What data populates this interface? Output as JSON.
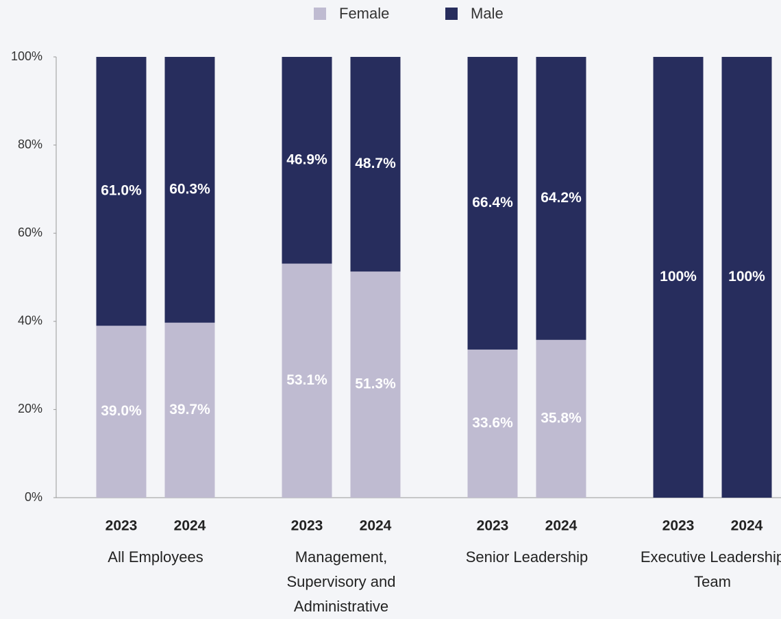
{
  "chart_data": {
    "type": "bar",
    "stacked": true,
    "categories": [
      "2023",
      "2024",
      "2023",
      "2024",
      "2023",
      "2024",
      "2023",
      "2024"
    ],
    "groups": [
      "All Employees",
      "Management, Supervisory and Administrative",
      "Senior Leadership",
      "Executive Leadership Team"
    ],
    "series": [
      {
        "name": "Female",
        "color": "#bfbbd1",
        "values": [
          39.0,
          39.7,
          53.1,
          51.3,
          33.6,
          35.8,
          0,
          0
        ],
        "value_labels": [
          "39.0%",
          "39.7%",
          "53.1%",
          "51.3%",
          "33.6%",
          "35.8%",
          null,
          null
        ]
      },
      {
        "name": "Male",
        "color": "#272d5d",
        "values": [
          61.0,
          60.3,
          46.9,
          48.7,
          66.4,
          64.2,
          100,
          100
        ],
        "value_labels": [
          "61.0%",
          "60.3%",
          "46.9%",
          "48.7%",
          "66.4%",
          "64.2%",
          "100%",
          "100%"
        ]
      }
    ],
    "ylim": [
      0,
      100
    ],
    "yticks": [
      {
        "value": 0,
        "label": "0%"
      },
      {
        "value": 20,
        "label": "20%"
      },
      {
        "value": 40,
        "label": "40%"
      },
      {
        "value": 60,
        "label": "60%"
      },
      {
        "value": 80,
        "label": "80%"
      },
      {
        "value": 100,
        "label": "100%"
      }
    ],
    "legend": "top"
  }
}
